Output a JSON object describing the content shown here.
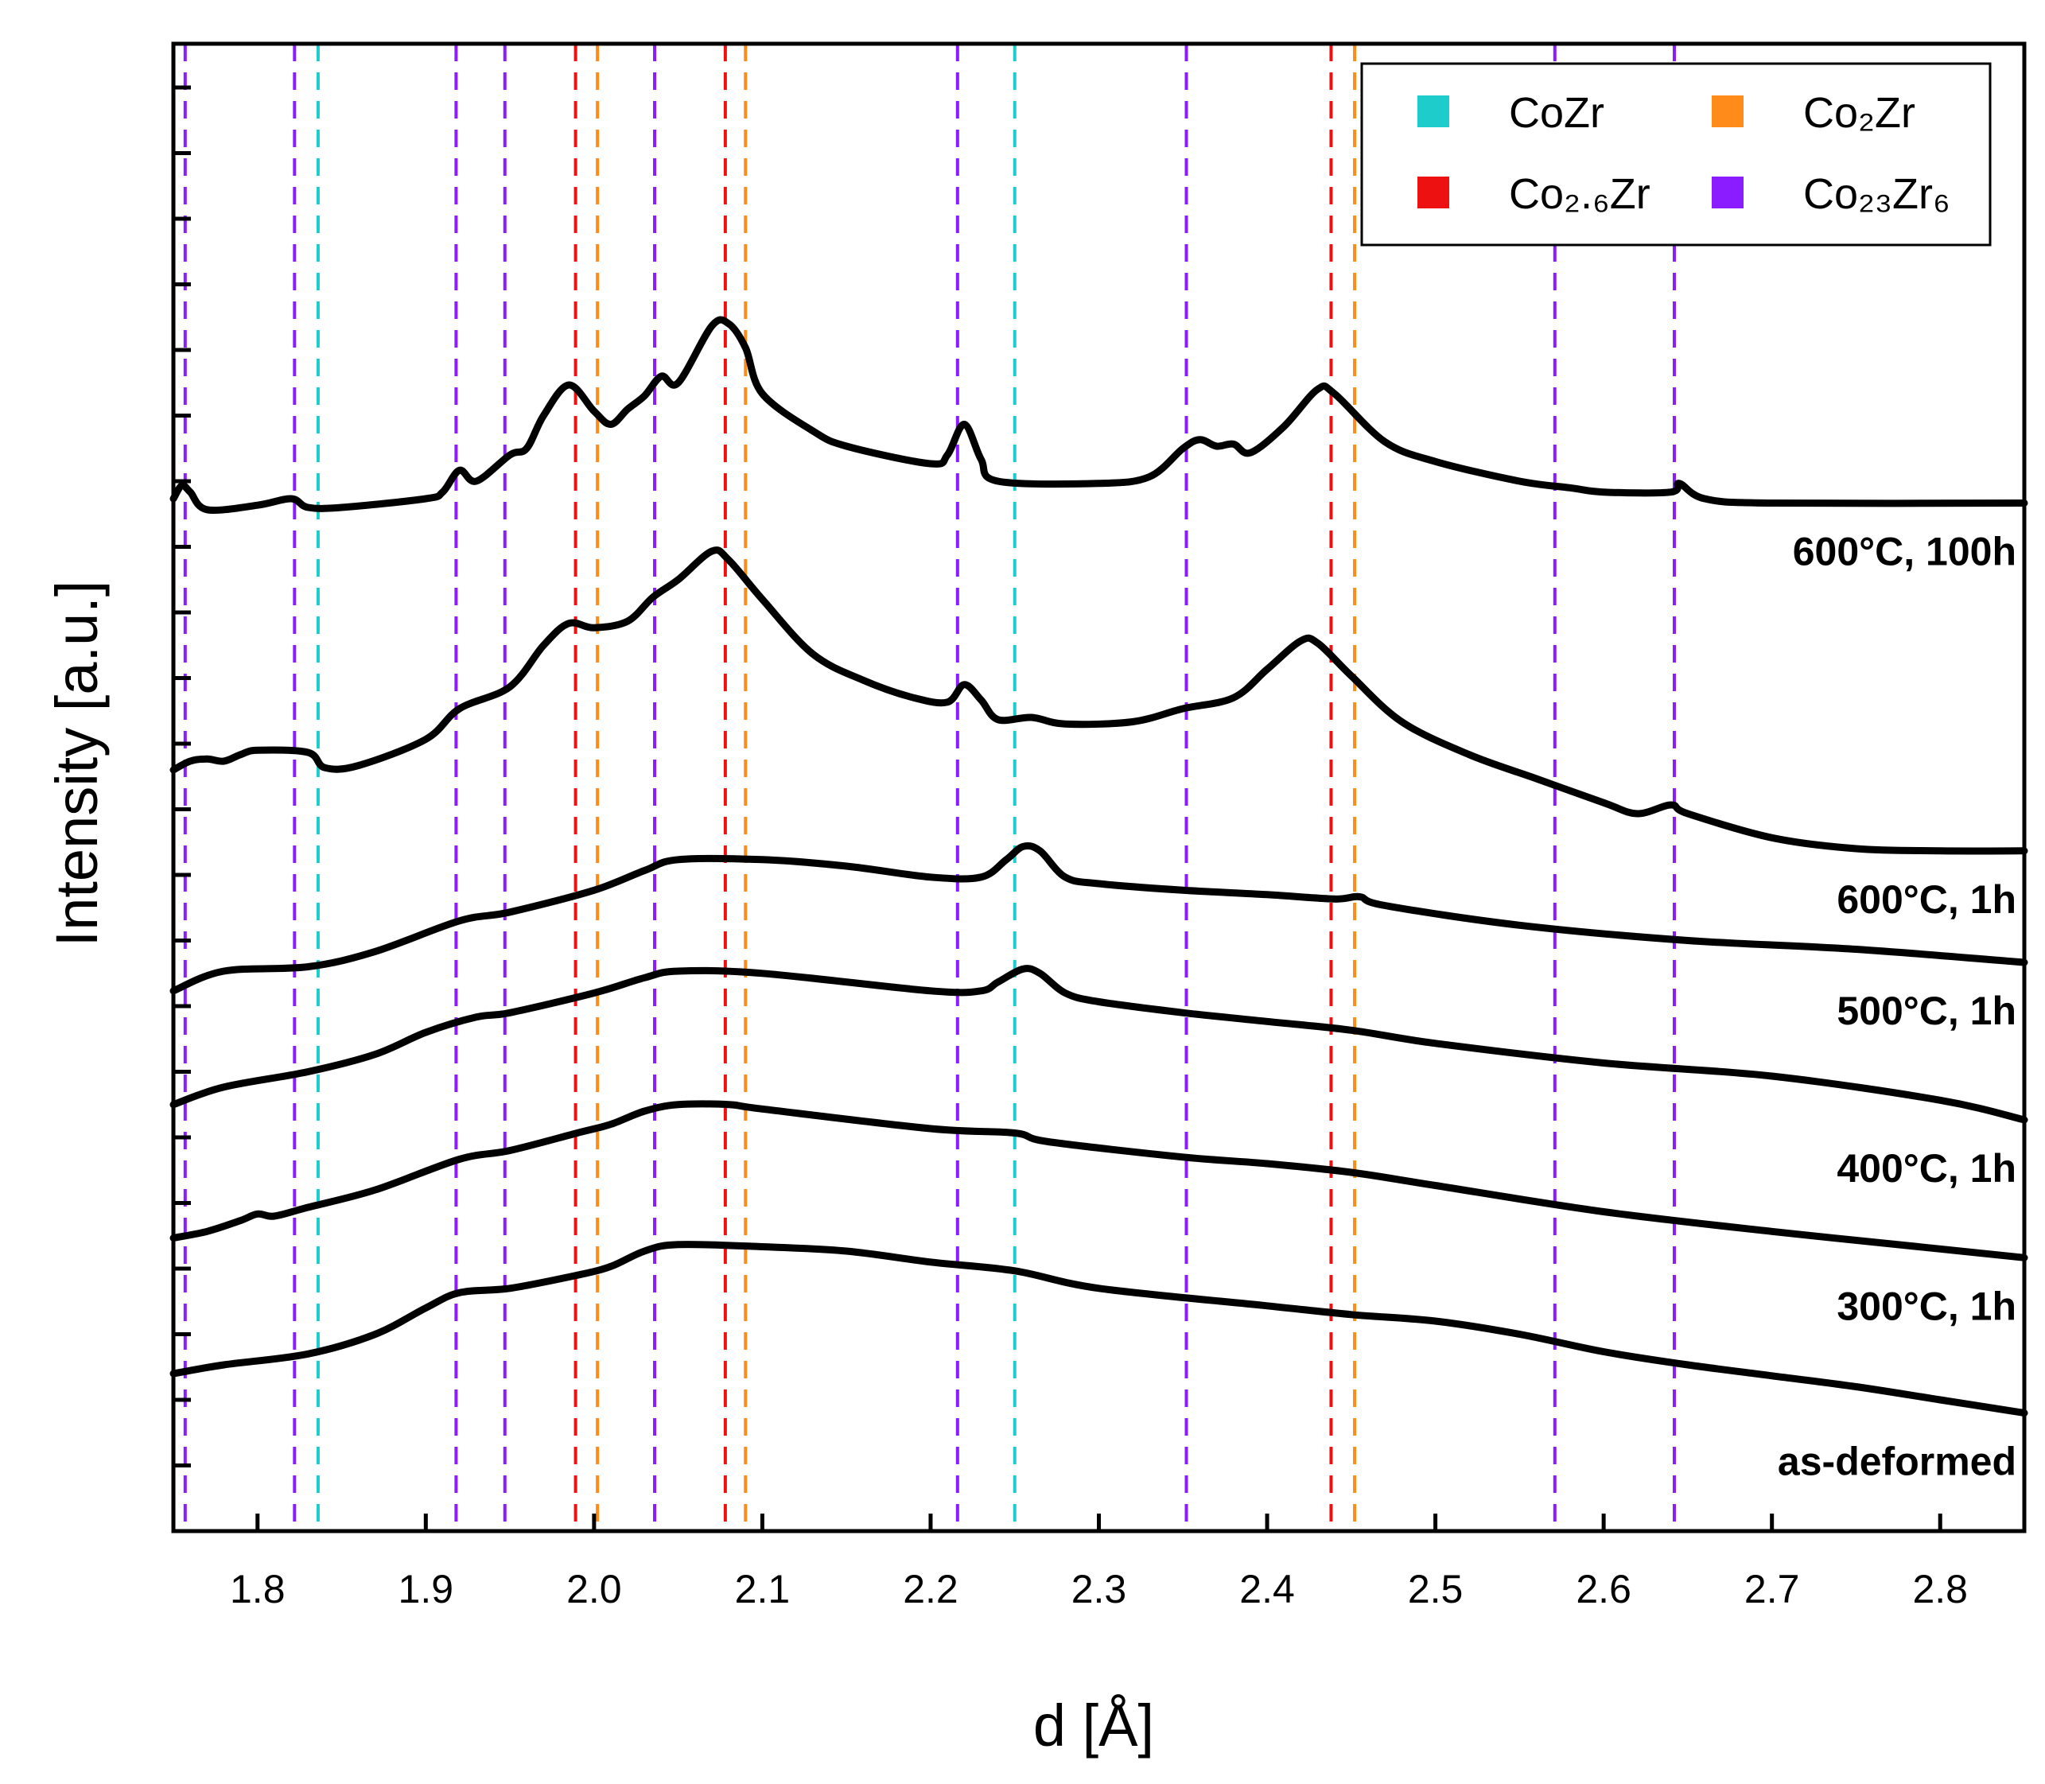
{
  "chart_data": {
    "type": "line",
    "xlabel": "d [Å]",
    "ylabel": "Intensity [a.u.]",
    "xlim": [
      1.75,
      2.85
    ],
    "ylim": [
      0,
      6.8
    ],
    "x_ticks": [
      1.8,
      1.9,
      2.0,
      2.1,
      2.2,
      2.3,
      2.4,
      2.5,
      2.6,
      2.7,
      2.8
    ],
    "x_tick_labels": [
      "1.8",
      "1.9",
      "2.0",
      "2.1",
      "2.2",
      "2.3",
      "2.4",
      "2.5",
      "2.6",
      "2.7",
      "2.8"
    ],
    "y_ticks": [
      0.3,
      0.6,
      0.9,
      1.2,
      1.5,
      1.8,
      2.1,
      2.4,
      2.7,
      3.0,
      3.3,
      3.6,
      3.9,
      4.2,
      4.5,
      4.8,
      5.1,
      5.4,
      5.7,
      6.0,
      6.3,
      6.6
    ],
    "y_tick_labels_shown": false,
    "legend": {
      "placement": "top-right",
      "entries": [
        {
          "label": "CoZr",
          "color": "#1fcccc"
        },
        {
          "label": "Co₂Zr",
          "color": "#ff8c1a"
        },
        {
          "label": "Co₂.₆Zr",
          "color": "#ee1111"
        },
        {
          "label": "Co₂₃Zr₆",
          "color": "#8a1cff"
        }
      ]
    },
    "reference_lines": [
      {
        "phase": "CoZr",
        "color": "#1fcccc",
        "x": [
          1.836,
          2.25
        ]
      },
      {
        "phase": "Co₂Zr",
        "color": "#ff8c1a",
        "x": [
          2.002,
          2.09,
          2.452
        ]
      },
      {
        "phase": "Co₂.₆Zr",
        "color": "#ee1111",
        "x": [
          1.989,
          2.078,
          2.438
        ]
      },
      {
        "phase": "Co₂₃Zr₆",
        "color": "#8a1cff",
        "x": [
          1.757,
          1.822,
          1.918,
          1.947,
          2.036,
          2.216,
          2.352,
          2.571,
          2.642
        ]
      }
    ],
    "series": [
      {
        "name": "as-deformed",
        "label": "as-deformed",
        "points": [
          [
            1.75,
            0.72
          ],
          [
            1.78,
            0.76
          ],
          [
            1.83,
            0.81
          ],
          [
            1.87,
            0.9
          ],
          [
            1.9,
            1.02
          ],
          [
            1.92,
            1.09
          ],
          [
            1.95,
            1.11
          ],
          [
            1.99,
            1.17
          ],
          [
            2.01,
            1.21
          ],
          [
            2.03,
            1.28
          ],
          [
            2.05,
            1.31
          ],
          [
            2.1,
            1.3
          ],
          [
            2.15,
            1.28
          ],
          [
            2.2,
            1.23
          ],
          [
            2.25,
            1.19
          ],
          [
            2.3,
            1.11
          ],
          [
            2.4,
            1.03
          ],
          [
            2.45,
            0.99
          ],
          [
            2.5,
            0.96
          ],
          [
            2.55,
            0.9
          ],
          [
            2.6,
            0.82
          ],
          [
            2.65,
            0.76
          ],
          [
            2.7,
            0.71
          ],
          [
            2.75,
            0.66
          ],
          [
            2.8,
            0.6
          ],
          [
            2.85,
            0.54
          ]
        ]
      },
      {
        "name": "300°C, 1h",
        "label": "300°C, 1h",
        "points": [
          [
            1.75,
            1.34
          ],
          [
            1.77,
            1.37
          ],
          [
            1.79,
            1.42
          ],
          [
            1.8,
            1.45
          ],
          [
            1.81,
            1.44
          ],
          [
            1.83,
            1.48
          ],
          [
            1.87,
            1.56
          ],
          [
            1.92,
            1.7
          ],
          [
            1.95,
            1.74
          ],
          [
            1.99,
            1.82
          ],
          [
            2.01,
            1.86
          ],
          [
            2.03,
            1.92
          ],
          [
            2.05,
            1.95
          ],
          [
            2.08,
            1.95
          ],
          [
            2.1,
            1.93
          ],
          [
            2.2,
            1.84
          ],
          [
            2.25,
            1.82
          ],
          [
            2.27,
            1.78
          ],
          [
            2.35,
            1.71
          ],
          [
            2.4,
            1.68
          ],
          [
            2.45,
            1.64
          ],
          [
            2.5,
            1.58
          ],
          [
            2.6,
            1.46
          ],
          [
            2.7,
            1.37
          ],
          [
            2.8,
            1.29
          ],
          [
            2.85,
            1.25
          ]
        ]
      },
      {
        "name": "400°C, 1h",
        "label": "400°C, 1h",
        "points": [
          [
            1.75,
            1.95
          ],
          [
            1.78,
            2.03
          ],
          [
            1.83,
            2.1
          ],
          [
            1.87,
            2.18
          ],
          [
            1.9,
            2.28
          ],
          [
            1.93,
            2.35
          ],
          [
            1.95,
            2.37
          ],
          [
            2.0,
            2.46
          ],
          [
            2.03,
            2.53
          ],
          [
            2.05,
            2.56
          ],
          [
            2.1,
            2.55
          ],
          [
            2.2,
            2.47
          ],
          [
            2.23,
            2.47
          ],
          [
            2.24,
            2.51
          ],
          [
            2.255,
            2.57
          ],
          [
            2.265,
            2.55
          ],
          [
            2.28,
            2.46
          ],
          [
            2.3,
            2.42
          ],
          [
            2.35,
            2.37
          ],
          [
            2.4,
            2.33
          ],
          [
            2.45,
            2.29
          ],
          [
            2.5,
            2.23
          ],
          [
            2.6,
            2.14
          ],
          [
            2.7,
            2.08
          ],
          [
            2.8,
            1.97
          ],
          [
            2.85,
            1.88
          ]
        ]
      },
      {
        "name": "500°C, 1h",
        "label": "500°C, 1h",
        "points": [
          [
            1.75,
            2.47
          ],
          [
            1.78,
            2.56
          ],
          [
            1.83,
            2.58
          ],
          [
            1.87,
            2.65
          ],
          [
            1.92,
            2.79
          ],
          [
            1.95,
            2.83
          ],
          [
            2.0,
            2.93
          ],
          [
            2.03,
            3.02
          ],
          [
            2.05,
            3.07
          ],
          [
            2.1,
            3.07
          ],
          [
            2.15,
            3.04
          ],
          [
            2.2,
            2.99
          ],
          [
            2.23,
            2.99
          ],
          [
            2.245,
            3.07
          ],
          [
            2.255,
            3.13
          ],
          [
            2.265,
            3.11
          ],
          [
            2.28,
            2.99
          ],
          [
            2.3,
            2.96
          ],
          [
            2.35,
            2.93
          ],
          [
            2.4,
            2.91
          ],
          [
            2.44,
            2.89
          ],
          [
            2.455,
            2.9
          ],
          [
            2.47,
            2.86
          ],
          [
            2.55,
            2.77
          ],
          [
            2.65,
            2.7
          ],
          [
            2.75,
            2.66
          ],
          [
            2.85,
            2.6
          ]
        ]
      },
      {
        "name": "600°C, 1h",
        "label": "600°C, 1h",
        "points": [
          [
            1.75,
            3.48
          ],
          [
            1.76,
            3.52
          ],
          [
            1.77,
            3.53
          ],
          [
            1.78,
            3.52
          ],
          [
            1.79,
            3.55
          ],
          [
            1.8,
            3.57
          ],
          [
            1.83,
            3.56
          ],
          [
            1.84,
            3.49
          ],
          [
            1.86,
            3.5
          ],
          [
            1.9,
            3.62
          ],
          [
            1.92,
            3.76
          ],
          [
            1.95,
            3.86
          ],
          [
            1.97,
            4.05
          ],
          [
            1.985,
            4.15
          ],
          [
            2.0,
            4.13
          ],
          [
            2.02,
            4.16
          ],
          [
            2.035,
            4.27
          ],
          [
            2.05,
            4.35
          ],
          [
            2.07,
            4.48
          ],
          [
            2.08,
            4.44
          ],
          [
            2.1,
            4.26
          ],
          [
            2.13,
            4.01
          ],
          [
            2.16,
            3.89
          ],
          [
            2.19,
            3.81
          ],
          [
            2.21,
            3.79
          ],
          [
            2.22,
            3.87
          ],
          [
            2.23,
            3.8
          ],
          [
            2.24,
            3.71
          ],
          [
            2.26,
            3.72
          ],
          [
            2.28,
            3.69
          ],
          [
            2.32,
            3.7
          ],
          [
            2.35,
            3.76
          ],
          [
            2.38,
            3.81
          ],
          [
            2.4,
            3.94
          ],
          [
            2.42,
            4.07
          ],
          [
            2.43,
            4.06
          ],
          [
            2.45,
            3.91
          ],
          [
            2.48,
            3.7
          ],
          [
            2.52,
            3.55
          ],
          [
            2.56,
            3.44
          ],
          [
            2.6,
            3.33
          ],
          [
            2.62,
            3.28
          ],
          [
            2.64,
            3.32
          ],
          [
            2.65,
            3.28
          ],
          [
            2.7,
            3.17
          ],
          [
            2.75,
            3.12
          ],
          [
            2.8,
            3.11
          ],
          [
            2.85,
            3.11
          ]
        ]
      },
      {
        "name": "600°C, 100h",
        "label": "600°C, 100h",
        "points": [
          [
            1.75,
            4.72
          ],
          [
            1.755,
            4.78
          ],
          [
            1.76,
            4.75
          ],
          [
            1.77,
            4.67
          ],
          [
            1.8,
            4.69
          ],
          [
            1.82,
            4.72
          ],
          [
            1.83,
            4.68
          ],
          [
            1.85,
            4.68
          ],
          [
            1.9,
            4.72
          ],
          [
            1.91,
            4.75
          ],
          [
            1.92,
            4.85
          ],
          [
            1.93,
            4.8
          ],
          [
            1.95,
            4.92
          ],
          [
            1.96,
            4.95
          ],
          [
            1.97,
            5.1
          ],
          [
            1.985,
            5.24
          ],
          [
            2.0,
            5.12
          ],
          [
            2.01,
            5.06
          ],
          [
            2.02,
            5.13
          ],
          [
            2.03,
            5.19
          ],
          [
            2.04,
            5.28
          ],
          [
            2.05,
            5.25
          ],
          [
            2.07,
            5.51
          ],
          [
            2.08,
            5.52
          ],
          [
            2.09,
            5.41
          ],
          [
            2.1,
            5.2
          ],
          [
            2.13,
            5.03
          ],
          [
            2.15,
            4.96
          ],
          [
            2.2,
            4.88
          ],
          [
            2.21,
            4.92
          ],
          [
            2.22,
            5.06
          ],
          [
            2.23,
            4.9
          ],
          [
            2.24,
            4.8
          ],
          [
            2.3,
            4.79
          ],
          [
            2.33,
            4.82
          ],
          [
            2.35,
            4.95
          ],
          [
            2.36,
            4.99
          ],
          [
            2.37,
            4.96
          ],
          [
            2.38,
            4.97
          ],
          [
            2.39,
            4.93
          ],
          [
            2.41,
            5.05
          ],
          [
            2.43,
            5.22
          ],
          [
            2.44,
            5.2
          ],
          [
            2.47,
            4.98
          ],
          [
            2.5,
            4.89
          ],
          [
            2.55,
            4.8
          ],
          [
            2.58,
            4.77
          ],
          [
            2.6,
            4.75
          ],
          [
            2.64,
            4.75
          ],
          [
            2.645,
            4.79
          ],
          [
            2.66,
            4.72
          ],
          [
            2.7,
            4.7
          ],
          [
            2.85,
            4.7
          ]
        ]
      }
    ]
  }
}
